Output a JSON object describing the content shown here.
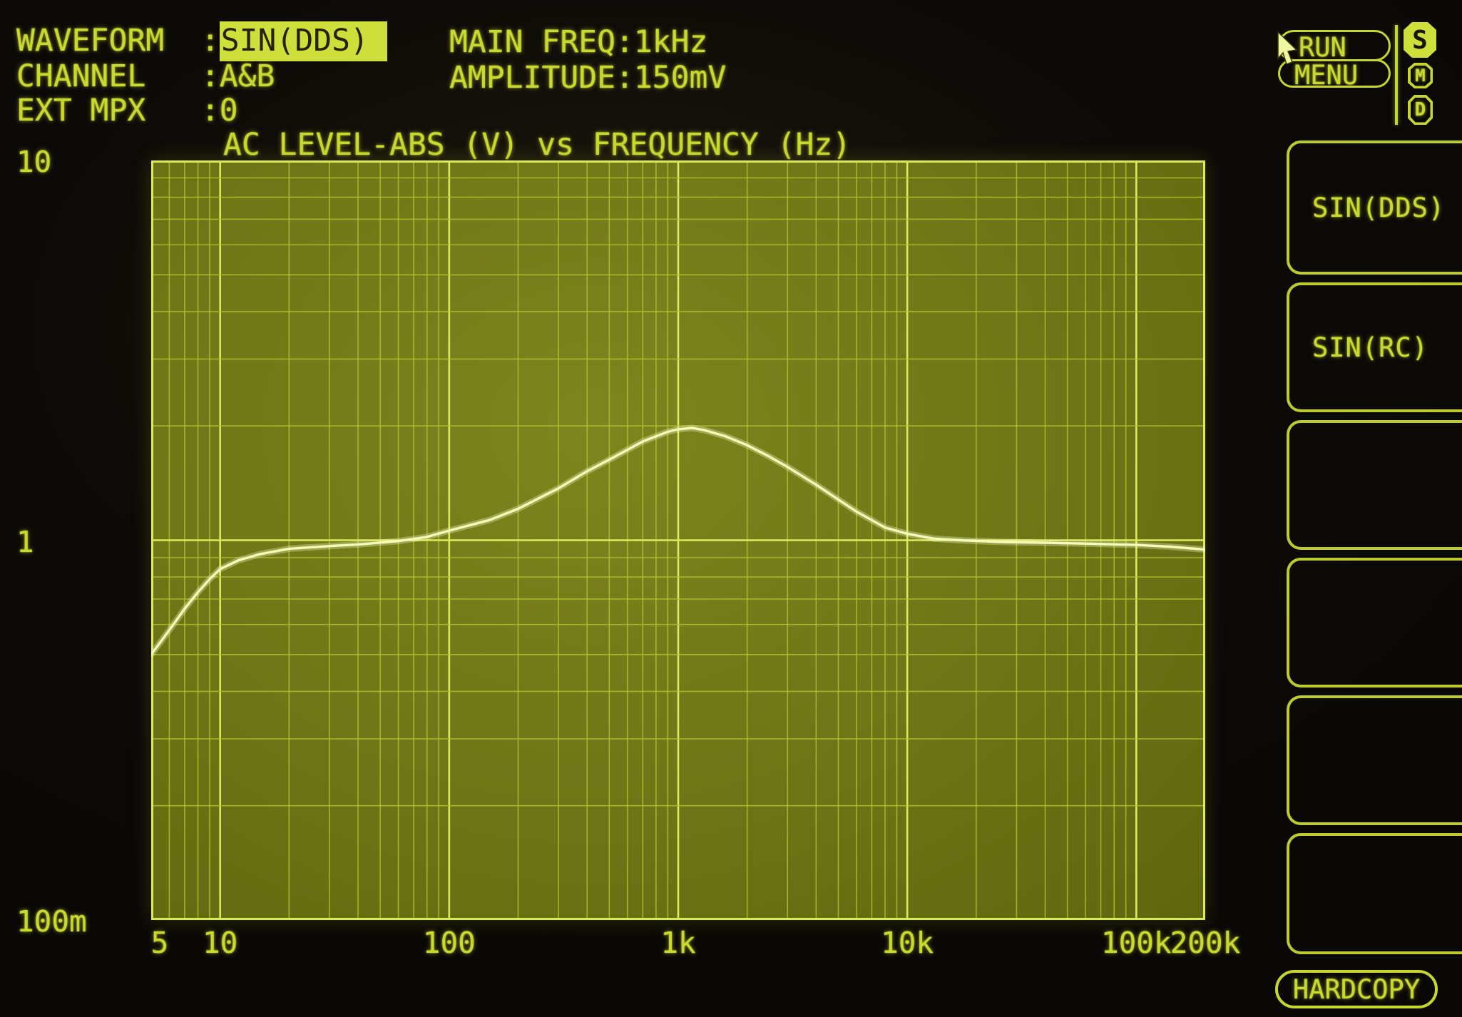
{
  "header": {
    "rows": [
      {
        "label": "WAVEFORM",
        "sep": ":",
        "value": "SIN(DDS)"
      },
      {
        "label": "CHANNEL",
        "sep": ":",
        "value": "A&B"
      },
      {
        "label": "EXT MPX",
        "sep": ":",
        "value": "0"
      }
    ],
    "params": [
      {
        "label": "MAIN FREQ",
        "sep": ":",
        "value": "1kHz"
      },
      {
        "label": "AMPLITUDE",
        "sep": ":",
        "value": "150mV"
      }
    ]
  },
  "run_menu": {
    "run_label": "RUN",
    "menu_label": "MENU",
    "badges": [
      "S",
      "M",
      "D"
    ],
    "selected_badge": "S"
  },
  "softkeys": [
    "SIN(DDS)",
    "SIN(RC)",
    "",
    "",
    "",
    ""
  ],
  "hardcopy_label": "HARDCOPY",
  "colors": {
    "phosphor_text": "#c9d92f",
    "grid_fill": "#6e7516",
    "grid_minor_line": "#b4c430",
    "grid_major_line": "#dcea5c",
    "trace": "#f4fab8",
    "highlight_bg": "#cede3a",
    "background": "#0a0806"
  },
  "chart_data": {
    "type": "line",
    "title": "AC LEVEL-ABS (V) vs FREQUENCY (Hz)",
    "xlabel": "FREQUENCY (Hz)",
    "ylabel": "AC LEVEL-ABS (V)",
    "x_scale": "log",
    "y_scale": "log",
    "xlim": [
      5,
      200000
    ],
    "ylim": [
      0.1,
      10
    ],
    "grid": "full log-log graticule, minor lines every mantissa, bright decade lines",
    "legend": "none",
    "x_ticks": [
      {
        "value": 5,
        "label": "5"
      },
      {
        "value": 10,
        "label": "10"
      },
      {
        "value": 100,
        "label": "100"
      },
      {
        "value": 1000,
        "label": "1k"
      },
      {
        "value": 10000,
        "label": "10k"
      },
      {
        "value": 100000,
        "label": "100k"
      },
      {
        "value": 200000,
        "label": "200k"
      }
    ],
    "y_ticks": [
      {
        "value": 10,
        "label": "10"
      },
      {
        "value": 1,
        "label": "1"
      },
      {
        "value": 0.1,
        "label": "100m"
      }
    ],
    "series": [
      {
        "name": "AC LEVEL-ABS (V)",
        "points": [
          [
            5,
            0.5
          ],
          [
            6,
            0.58
          ],
          [
            7,
            0.66
          ],
          [
            8,
            0.73
          ],
          [
            9,
            0.79
          ],
          [
            10,
            0.84
          ],
          [
            12,
            0.885
          ],
          [
            15,
            0.92
          ],
          [
            20,
            0.95
          ],
          [
            30,
            0.965
          ],
          [
            40,
            0.975
          ],
          [
            60,
            0.995
          ],
          [
            80,
            1.02
          ],
          [
            100,
            1.06
          ],
          [
            150,
            1.13
          ],
          [
            200,
            1.21
          ],
          [
            300,
            1.37
          ],
          [
            400,
            1.52
          ],
          [
            500,
            1.63
          ],
          [
            700,
            1.82
          ],
          [
            900,
            1.93
          ],
          [
            1000,
            1.96
          ],
          [
            1150,
            1.975
          ],
          [
            1300,
            1.95
          ],
          [
            1600,
            1.88
          ],
          [
            2000,
            1.78
          ],
          [
            2500,
            1.66
          ],
          [
            3000,
            1.56
          ],
          [
            4000,
            1.4
          ],
          [
            5000,
            1.28
          ],
          [
            6000,
            1.19
          ],
          [
            8000,
            1.08
          ],
          [
            10000,
            1.04
          ],
          [
            13000,
            1.01
          ],
          [
            17000,
            1.0
          ],
          [
            25000,
            0.99
          ],
          [
            40000,
            0.985
          ],
          [
            60000,
            0.98
          ],
          [
            100000,
            0.972
          ],
          [
            140000,
            0.962
          ],
          [
            200000,
            0.945
          ]
        ]
      }
    ]
  }
}
